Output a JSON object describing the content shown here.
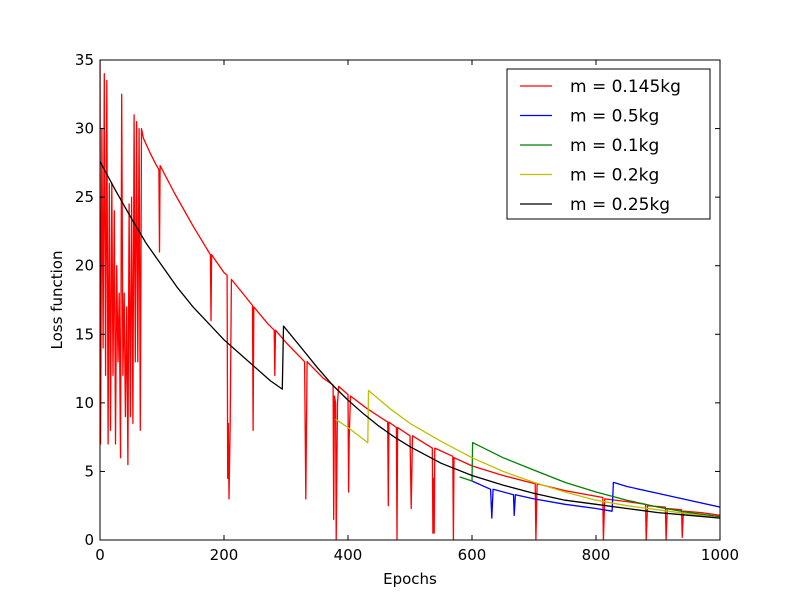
{
  "chart_data": {
    "type": "line",
    "title": "",
    "xlabel": "Epochs",
    "ylabel": "Loss function",
    "xlim": [
      0,
      1000
    ],
    "ylim": [
      0,
      35
    ],
    "xticks": [
      0,
      200,
      400,
      600,
      800,
      1000
    ],
    "yticks": [
      0,
      5,
      10,
      15,
      20,
      25,
      30,
      35
    ],
    "legend_position": "top-right",
    "grid": false,
    "series": [
      {
        "name": "m = 0.145kg",
        "color": "#ff0000",
        "points": [
          [
            0,
            35
          ],
          [
            1,
            7
          ],
          [
            3,
            30
          ],
          [
            5,
            14
          ],
          [
            7,
            34
          ],
          [
            9,
            12
          ],
          [
            11,
            33.5
          ],
          [
            13,
            7
          ],
          [
            15,
            26
          ],
          [
            17,
            8
          ],
          [
            19,
            26
          ],
          [
            21,
            12
          ],
          [
            23,
            24
          ],
          [
            25,
            7
          ],
          [
            27,
            20
          ],
          [
            29,
            13
          ],
          [
            31,
            18
          ],
          [
            33,
            6
          ],
          [
            35,
            32.5
          ],
          [
            37,
            12
          ],
          [
            39,
            18
          ],
          [
            41,
            9
          ],
          [
            43,
            17
          ],
          [
            45,
            5.5
          ],
          [
            47,
            24.5
          ],
          [
            49,
            9
          ],
          [
            51,
            25
          ],
          [
            53,
            8.5
          ],
          [
            55,
            31
          ],
          [
            57,
            13
          ],
          [
            59,
            30.5
          ],
          [
            61,
            13
          ],
          [
            63,
            30
          ],
          [
            65,
            8
          ],
          [
            67,
            30
          ],
          [
            70,
            29.3
          ],
          [
            80,
            28.3
          ],
          [
            90,
            27.4
          ],
          [
            95,
            27
          ],
          [
            96,
            21
          ],
          [
            97,
            27.3
          ],
          [
            120,
            25.3
          ],
          [
            150,
            22.9
          ],
          [
            178,
            20.8
          ],
          [
            179,
            16
          ],
          [
            180,
            20.8
          ],
          [
            200,
            19.5
          ],
          [
            205,
            19.3
          ],
          [
            206,
            4.5
          ],
          [
            207,
            8.5
          ],
          [
            208,
            3
          ],
          [
            210,
            8.5
          ],
          [
            212,
            19
          ],
          [
            230,
            18
          ],
          [
            246,
            17.1
          ],
          [
            247,
            8
          ],
          [
            248,
            17
          ],
          [
            270,
            15.8
          ],
          [
            281,
            15.3
          ],
          [
            282,
            12
          ],
          [
            283,
            15.3
          ],
          [
            300,
            14.4
          ],
          [
            330,
            13
          ],
          [
            332,
            3
          ],
          [
            334,
            13
          ],
          [
            360,
            11.8
          ],
          [
            376,
            11.3
          ],
          [
            377,
            1.5
          ],
          [
            378,
            10.5
          ],
          [
            380,
            10
          ],
          [
            381,
            0
          ],
          [
            383,
            10
          ],
          [
            385,
            11.2
          ],
          [
            400,
            10.6
          ],
          [
            401,
            3.5
          ],
          [
            402,
            7.5
          ],
          [
            404,
            10.5
          ],
          [
            430,
            9.6
          ],
          [
            464,
            8.6
          ],
          [
            465,
            2.5
          ],
          [
            466,
            8.6
          ],
          [
            478,
            8.2
          ],
          [
            479,
            0
          ],
          [
            480,
            8.2
          ],
          [
            500,
            7.6
          ],
          [
            502,
            2.3
          ],
          [
            504,
            7.6
          ],
          [
            536,
            6.7
          ],
          [
            537,
            0.5
          ],
          [
            538,
            4.5
          ],
          [
            539,
            0.5
          ],
          [
            540,
            6.7
          ],
          [
            569,
            6.1
          ],
          [
            570,
            0
          ],
          [
            571,
            6
          ],
          [
            600,
            5.4
          ],
          [
            650,
            4.7
          ],
          [
            702,
            4.1
          ],
          [
            703,
            0
          ],
          [
            705,
            4.1
          ],
          [
            750,
            3.6
          ],
          [
            811,
            3.1
          ],
          [
            812,
            0
          ],
          [
            814,
            3
          ],
          [
            850,
            2.8
          ],
          [
            880,
            2.6
          ],
          [
            881,
            0
          ],
          [
            883,
            2.5
          ],
          [
            912,
            2.4
          ],
          [
            913,
            0
          ],
          [
            915,
            2.3
          ],
          [
            938,
            2.2
          ],
          [
            939,
            0.2
          ],
          [
            941,
            2.1
          ],
          [
            970,
            2
          ],
          [
            1000,
            1.8
          ]
        ]
      },
      {
        "name": "m = 0.5kg",
        "color": "#0000ff",
        "points": [
          [
            600,
            4.3
          ],
          [
            630,
            3.7
          ],
          [
            632,
            1.6
          ],
          [
            634,
            3.7
          ],
          [
            667,
            3.3
          ],
          [
            668,
            1.8
          ],
          [
            670,
            3.3
          ],
          [
            700,
            3
          ],
          [
            750,
            2.6
          ],
          [
            800,
            2.3
          ],
          [
            826,
            2.1
          ],
          [
            828,
            4.2
          ],
          [
            850,
            3.9
          ],
          [
            900,
            3.4
          ],
          [
            950,
            2.9
          ],
          [
            1000,
            2.4
          ]
        ]
      },
      {
        "name": "m = 0.1kg",
        "color": "#008000",
        "points": [
          [
            580,
            4.6
          ],
          [
            600,
            4.3
          ],
          [
            601,
            7.1
          ],
          [
            650,
            6
          ],
          [
            700,
            5.1
          ],
          [
            750,
            4.2
          ],
          [
            800,
            3.5
          ],
          [
            850,
            2.9
          ],
          [
            900,
            2.4
          ],
          [
            950,
            2
          ],
          [
            1000,
            1.7
          ]
        ]
      },
      {
        "name": "m = 0.2kg",
        "color": "#bfbf00",
        "points": [
          [
            380,
            8.8
          ],
          [
            400,
            8.2
          ],
          [
            432,
            7.1
          ],
          [
            433,
            10.9
          ],
          [
            470,
            9.5
          ],
          [
            500,
            8.5
          ],
          [
            550,
            7.2
          ],
          [
            600,
            6
          ],
          [
            650,
            5
          ],
          [
            700,
            4.2
          ],
          [
            750,
            3.5
          ],
          [
            800,
            2.9
          ],
          [
            850,
            2.5
          ],
          [
            900,
            2.2
          ],
          [
            950,
            1.9
          ],
          [
            1000,
            1.6
          ]
        ]
      },
      {
        "name": "m = 0.25kg",
        "color": "#000000",
        "points": [
          [
            0,
            27.6
          ],
          [
            25,
            25.5
          ],
          [
            50,
            23.5
          ],
          [
            75,
            21.6
          ],
          [
            100,
            20
          ],
          [
            125,
            18.4
          ],
          [
            150,
            17
          ],
          [
            175,
            15.8
          ],
          [
            200,
            14.6
          ],
          [
            225,
            13.6
          ],
          [
            250,
            12.6
          ],
          [
            275,
            11.6
          ],
          [
            294,
            11
          ],
          [
            296,
            15.6
          ],
          [
            325,
            14
          ],
          [
            350,
            12.6
          ],
          [
            375,
            11.3
          ],
          [
            400,
            10.2
          ],
          [
            425,
            9.2
          ],
          [
            450,
            8.3
          ],
          [
            475,
            7.5
          ],
          [
            500,
            6.8
          ],
          [
            550,
            5.6
          ],
          [
            600,
            4.7
          ],
          [
            650,
            4
          ],
          [
            700,
            3.4
          ],
          [
            750,
            2.9
          ],
          [
            800,
            2.6
          ],
          [
            850,
            2.3
          ],
          [
            900,
            2
          ],
          [
            950,
            1.8
          ],
          [
            1000,
            1.6
          ]
        ]
      }
    ]
  }
}
